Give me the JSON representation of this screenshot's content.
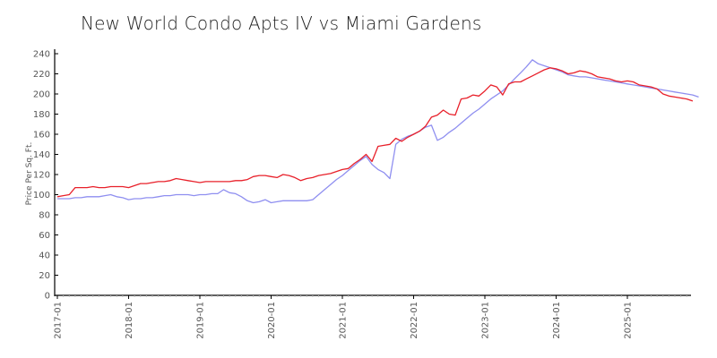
{
  "chart_data": {
    "type": "line",
    "title": "New World Condo Apts IV vs Miami Gardens",
    "xlabel": "",
    "ylabel": "Price Per Sq. Ft.",
    "ylim": [
      0,
      240
    ],
    "yticks": [
      0,
      20,
      40,
      60,
      80,
      100,
      120,
      140,
      160,
      180,
      200,
      220,
      240
    ],
    "xtick_labels": [
      "2017-01",
      "2018-01",
      "2019-01",
      "2020-01",
      "2021-01",
      "2022-01",
      "2023-01",
      "2024-01",
      "2025-01"
    ],
    "grid": false,
    "legend": null,
    "x_start": "2017-01",
    "x_step": "month",
    "series": [
      {
        "name": "New World Condo Apts IV",
        "color": "#e8202a",
        "values": [
          98,
          99,
          100,
          107,
          107,
          107,
          108,
          107,
          107,
          108,
          108,
          108,
          107,
          109,
          111,
          111,
          112,
          113,
          113,
          114,
          116,
          115,
          114,
          113,
          112,
          113,
          113,
          113,
          113,
          113,
          114,
          114,
          115,
          118,
          119,
          119,
          118,
          117,
          120,
          119,
          117,
          114,
          116,
          117,
          119,
          120,
          121,
          123,
          125,
          126,
          131,
          135,
          140,
          133,
          148,
          149,
          150,
          156,
          153,
          157,
          160,
          163,
          168,
          177,
          179,
          184,
          180,
          179,
          195,
          196,
          199,
          198,
          203,
          209,
          207,
          199,
          210,
          212,
          212,
          215,
          218,
          221,
          224,
          226,
          225,
          223,
          220,
          221,
          223,
          222,
          220,
          217,
          216,
          215,
          213,
          212,
          213,
          212,
          209,
          208,
          207,
          205,
          200,
          198,
          197,
          196,
          195,
          193
        ]
      },
      {
        "name": "Miami Gardens",
        "color": "#8f8ff0",
        "values": [
          96,
          96,
          96,
          97,
          97,
          98,
          98,
          98,
          99,
          100,
          98,
          97,
          95,
          96,
          96,
          97,
          97,
          98,
          99,
          99,
          100,
          100,
          100,
          99,
          100,
          100,
          101,
          101,
          105,
          102,
          101,
          98,
          94,
          92,
          93,
          95,
          92,
          93,
          94,
          94,
          94,
          94,
          94,
          95,
          100,
          105,
          110,
          115,
          119,
          124,
          129,
          134,
          138,
          130,
          125,
          122,
          116,
          150,
          155,
          158,
          160,
          163,
          167,
          169,
          154,
          157,
          162,
          166,
          171,
          176,
          181,
          185,
          190,
          195,
          199,
          203,
          209,
          215,
          221,
          227,
          234,
          230,
          228,
          226,
          224,
          222,
          219,
          218,
          217,
          217,
          216,
          215,
          214,
          213,
          212,
          211,
          210,
          209,
          208,
          207,
          206,
          205,
          204,
          203,
          202,
          201,
          200,
          199,
          197
        ]
      }
    ]
  },
  "axes": {
    "y_axis_title": "Price Per Sq. Ft."
  }
}
